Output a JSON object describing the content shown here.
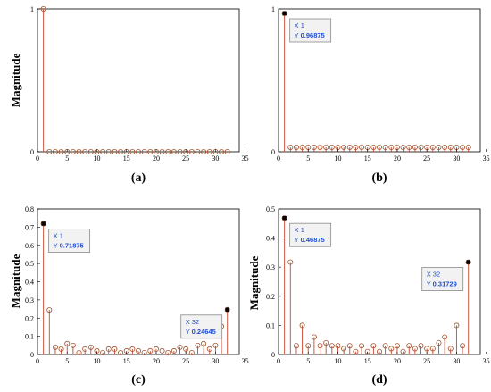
{
  "chart_data": [
    {
      "type": "stem",
      "caption": "(a)",
      "ylabel": "Magnitude",
      "xlim": [
        0,
        34
      ],
      "ylim": [
        0,
        1
      ],
      "xticks": [
        0,
        5,
        10,
        15,
        20,
        25,
        30,
        35
      ],
      "yticks": [
        0,
        1
      ],
      "x": [
        1,
        2,
        3,
        4,
        5,
        6,
        7,
        8,
        9,
        10,
        11,
        12,
        13,
        14,
        15,
        16,
        17,
        18,
        19,
        20,
        21,
        22,
        23,
        24,
        25,
        26,
        27,
        28,
        29,
        30,
        31,
        32
      ],
      "values": [
        1,
        0,
        0,
        0,
        0,
        0,
        0,
        0,
        0,
        0,
        0,
        0,
        0,
        0,
        0,
        0,
        0,
        0,
        0,
        0,
        0,
        0,
        0,
        0,
        0,
        0,
        0,
        0,
        0,
        0,
        0,
        0
      ],
      "stem_color": "#c8462f",
      "marker_color": "#a0522d",
      "datatips": []
    },
    {
      "type": "stem",
      "caption": "(b)",
      "ylabel": "",
      "xlim": [
        0,
        34
      ],
      "ylim": [
        0,
        1
      ],
      "xticks": [
        0,
        5,
        10,
        15,
        20,
        25,
        30,
        35
      ],
      "yticks": [
        0,
        1
      ],
      "x": [
        1,
        2,
        3,
        4,
        5,
        6,
        7,
        8,
        9,
        10,
        11,
        12,
        13,
        14,
        15,
        16,
        17,
        18,
        19,
        20,
        21,
        22,
        23,
        24,
        25,
        26,
        27,
        28,
        29,
        30,
        31,
        32
      ],
      "values": [
        0.96875,
        0.03125,
        0.03125,
        0.03125,
        0.03125,
        0.03125,
        0.03125,
        0.03125,
        0.03125,
        0.03125,
        0.03125,
        0.03125,
        0.03125,
        0.03125,
        0.03125,
        0.03125,
        0.03125,
        0.03125,
        0.03125,
        0.03125,
        0.03125,
        0.03125,
        0.03125,
        0.03125,
        0.03125,
        0.03125,
        0.03125,
        0.03125,
        0.03125,
        0.03125,
        0.03125,
        0.03125
      ],
      "stem_color": "#c8462f",
      "marker_color": "#a0522d",
      "datatips": [
        {
          "x": 1,
          "y": 0.96875,
          "x_label": "X 1",
          "y_prefix": "Y",
          "y_text": "0.96875"
        }
      ]
    },
    {
      "type": "stem",
      "caption": "(c)",
      "ylabel": "Magnitude",
      "xlim": [
        0,
        34
      ],
      "ylim": [
        0,
        0.8
      ],
      "xticks": [
        0,
        5,
        10,
        15,
        20,
        25,
        30,
        35
      ],
      "yticks": [
        0,
        0.1,
        0.2,
        0.3,
        0.4,
        0.5,
        0.6,
        0.7,
        0.8
      ],
      "x": [
        1,
        2,
        3,
        4,
        5,
        6,
        7,
        8,
        9,
        10,
        11,
        12,
        13,
        14,
        15,
        16,
        17,
        18,
        19,
        20,
        21,
        22,
        23,
        24,
        25,
        26,
        27,
        28,
        29,
        30,
        31,
        32
      ],
      "values": [
        0.71875,
        0.245,
        0.04,
        0.03,
        0.06,
        0.05,
        0.01,
        0.03,
        0.04,
        0.02,
        0.01,
        0.03,
        0.03,
        0.01,
        0.02,
        0.03,
        0.02,
        0.01,
        0.02,
        0.03,
        0.02,
        0.01,
        0.02,
        0.04,
        0.03,
        0.01,
        0.05,
        0.06,
        0.03,
        0.05,
        0.155,
        0.24645
      ],
      "stem_color": "#c8462f",
      "marker_color": "#a0522d",
      "datatips": [
        {
          "x": 1,
          "y": 0.71875,
          "x_label": "X 1",
          "y_prefix": "Y",
          "y_text": "0.71875"
        },
        {
          "x": 32,
          "y": 0.24645,
          "x_label": "X 32",
          "y_prefix": "Y",
          "y_text": "0.24645"
        }
      ]
    },
    {
      "type": "stem",
      "caption": "(d)",
      "ylabel": "Magnitude",
      "xlim": [
        0,
        34
      ],
      "ylim": [
        0,
        0.5
      ],
      "xticks": [
        0,
        5,
        10,
        15,
        20,
        25,
        30,
        35
      ],
      "yticks": [
        0,
        0.1,
        0.2,
        0.3,
        0.4,
        0.5
      ],
      "x": [
        1,
        2,
        3,
        4,
        5,
        6,
        7,
        8,
        9,
        10,
        11,
        12,
        13,
        14,
        15,
        16,
        17,
        18,
        19,
        20,
        21,
        22,
        23,
        24,
        25,
        26,
        27,
        28,
        29,
        30,
        31,
        32
      ],
      "values": [
        0.46875,
        0.31729,
        0.03,
        0.1,
        0.03,
        0.06,
        0.03,
        0.04,
        0.03,
        0.03,
        0.02,
        0.03,
        0.01,
        0.03,
        0.01,
        0.03,
        0.01,
        0.03,
        0.02,
        0.03,
        0.01,
        0.03,
        0.02,
        0.03,
        0.02,
        0.02,
        0.04,
        0.06,
        0.02,
        0.1,
        0.03,
        0.31729
      ],
      "stem_color": "#c8462f",
      "marker_color": "#a0522d",
      "datatips": [
        {
          "x": 1,
          "y": 0.46875,
          "x_label": "X 1",
          "y_prefix": "Y",
          "y_text": "0.46875"
        },
        {
          "x": 32,
          "y": 0.31729,
          "x_label": "X 32",
          "y_prefix": "Y",
          "y_text": "0.31729"
        }
      ]
    }
  ]
}
